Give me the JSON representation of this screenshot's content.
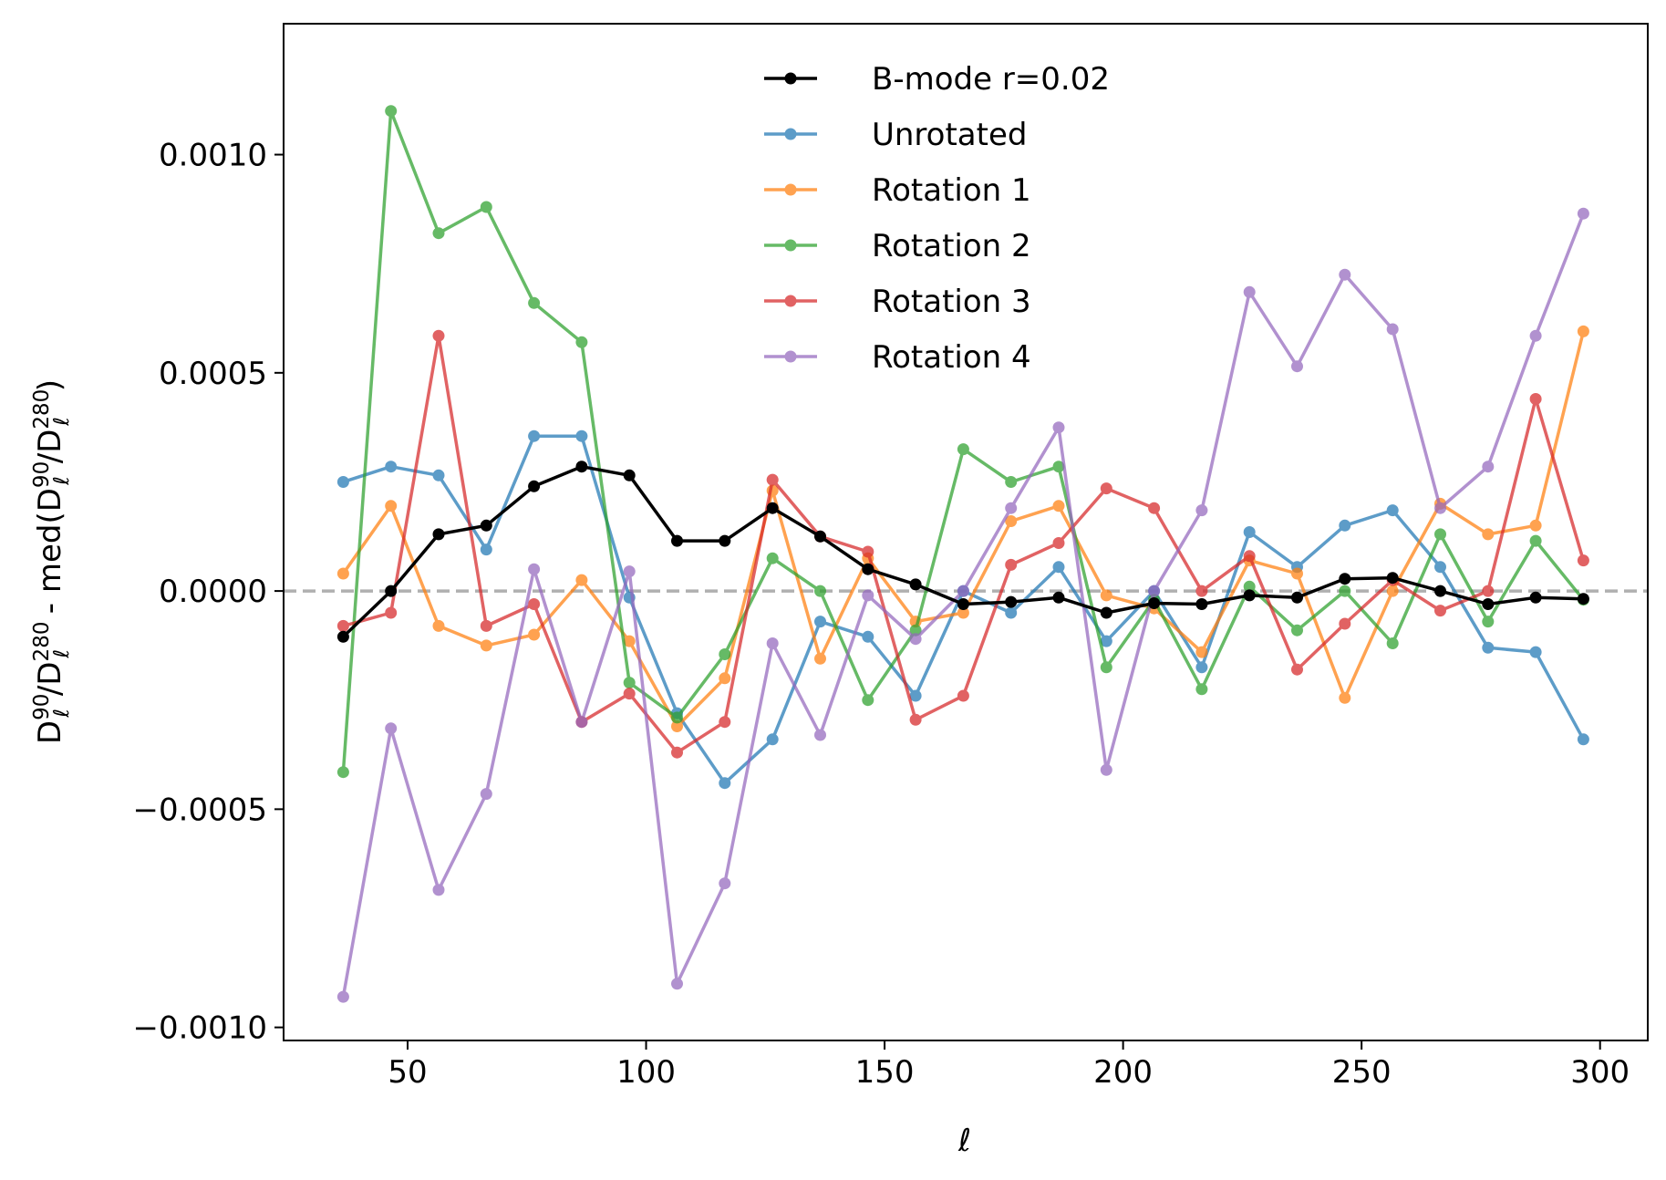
{
  "chart_data": {
    "type": "line",
    "title": "",
    "xlabel": "ℓ",
    "ylabel": "D_ℓ^90/D_ℓ^280 - med(D_ℓ^90/D_ℓ^280)",
    "ylabel_parts": {
      "d1": "D",
      "sub1": "ℓ",
      "sup1": "90",
      "slash1": "/",
      "d2": "D",
      "sub2": "ℓ",
      "sup2": "280",
      "minus": " - med(",
      "d3": "D",
      "sub3": "ℓ",
      "sup3": "90",
      "slash2": "/",
      "d4": "D",
      "sub4": "ℓ",
      "sup4": "280",
      "close": ")"
    },
    "xlim": [
      24,
      310
    ],
    "ylim": [
      -0.00103,
      0.0013
    ],
    "xticks": [
      50,
      100,
      150,
      200,
      250,
      300
    ],
    "xtick_labels": [
      "50",
      "100",
      "150",
      "200",
      "250",
      "300"
    ],
    "yticks": [
      -0.001,
      -0.0005,
      0,
      0.0005,
      0.001
    ],
    "ytick_labels": [
      "−0.0010",
      "−0.0005",
      "0.0000",
      "0.0005",
      "0.0010"
    ],
    "reference_line": {
      "y": 0,
      "style": "dashed",
      "color": "#b0b0b0"
    },
    "legend_position": "upper-center",
    "x": [
      36.5,
      46.5,
      56.5,
      66.5,
      76.5,
      86.5,
      96.5,
      106.5,
      116.5,
      126.5,
      136.5,
      146.5,
      156.5,
      166.5,
      176.5,
      186.5,
      196.5,
      206.5,
      216.5,
      226.5,
      236.5,
      246.5,
      256.5,
      266.5,
      276.5,
      286.5,
      296.5
    ],
    "series": [
      {
        "name": "B-mode r=0.02",
        "color": "#000000",
        "opacity": 1.0,
        "values": [
          -0.000105,
          0.0,
          0.00013,
          0.00015,
          0.00024,
          0.000285,
          0.000265,
          0.000115,
          0.000115,
          0.00019,
          0.000125,
          5e-05,
          1.5e-05,
          -3e-05,
          -2.5e-05,
          -1.5e-05,
          -5e-05,
          -2.8e-05,
          -3e-05,
          -1e-05,
          -1.5e-05,
          2.8e-05,
          3e-05,
          0.0,
          -3e-05,
          -1.5e-05,
          -1.8e-05
        ]
      },
      {
        "name": "Unrotated",
        "color": "#1f77b4",
        "opacity": 0.72,
        "values": [
          0.00025,
          0.000285,
          0.000265,
          9.5e-05,
          0.000355,
          0.000355,
          -1.5e-05,
          -0.00028,
          -0.00044,
          -0.00034,
          -7e-05,
          -0.000105,
          -0.00024,
          0.0,
          -5e-05,
          5.5e-05,
          -0.000115,
          0.0,
          -0.000175,
          0.000135,
          5.5e-05,
          0.00015,
          0.000185,
          5.5e-05,
          -0.00013,
          -0.00014,
          -0.00034
        ]
      },
      {
        "name": "Rotation 1",
        "color": "#ff7f0e",
        "opacity": 0.72,
        "values": [
          4e-05,
          0.000195,
          -8e-05,
          -0.000125,
          -0.0001,
          2.5e-05,
          -0.000115,
          -0.00031,
          -0.0002,
          0.00023,
          -0.000155,
          7.5e-05,
          -7e-05,
          -5e-05,
          0.00016,
          0.000195,
          -1e-05,
          -4e-05,
          -0.00014,
          7e-05,
          4e-05,
          -0.000245,
          0.0,
          0.0002,
          0.00013,
          0.00015,
          0.000595
        ]
      },
      {
        "name": "Rotation 2",
        "color": "#2ca02c",
        "opacity": 0.72,
        "values": [
          -0.000415,
          0.0011,
          0.00082,
          0.00088,
          0.00066,
          0.00057,
          -0.00021,
          -0.00029,
          -0.000145,
          7.5e-05,
          0.0,
          -0.00025,
          -9e-05,
          0.000325,
          0.00025,
          0.000285,
          -0.000175,
          -2e-05,
          -0.000225,
          1e-05,
          -9e-05,
          0.0,
          -0.00012,
          0.00013,
          -7e-05,
          0.000115,
          -2e-05
        ]
      },
      {
        "name": "Rotation 3",
        "color": "#d62728",
        "opacity": 0.72,
        "values": [
          -8e-05,
          -5e-05,
          0.000585,
          -8e-05,
          -3e-05,
          -0.0003,
          -0.000235,
          -0.00037,
          -0.0003,
          0.000255,
          0.000125,
          9e-05,
          -0.000295,
          -0.00024,
          6e-05,
          0.00011,
          0.000235,
          0.00019,
          0.0,
          8e-05,
          -0.00018,
          -7.5e-05,
          2.5e-05,
          -4.5e-05,
          0.0,
          0.00044,
          7e-05
        ]
      },
      {
        "name": "Rotation 4",
        "color": "#9467bd",
        "opacity": 0.72,
        "values": [
          -0.00093,
          -0.000315,
          -0.000685,
          -0.000465,
          5e-05,
          -0.0003,
          4.5e-05,
          -0.0009,
          -0.00067,
          -0.00012,
          -0.00033,
          -1e-05,
          -0.00011,
          0.0,
          0.00019,
          0.000375,
          -0.00041,
          0.0,
          0.000185,
          0.000685,
          0.000515,
          0.000725,
          0.0006,
          0.00019,
          0.000285,
          0.000585,
          0.000865
        ]
      }
    ]
  }
}
